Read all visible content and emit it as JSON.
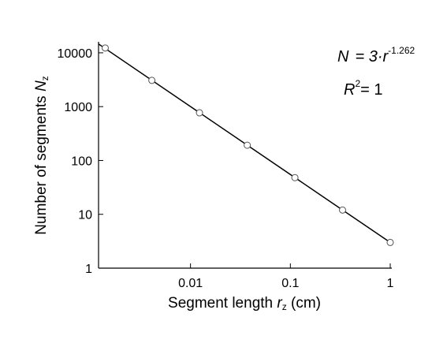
{
  "chart_data": {
    "type": "scatter",
    "xlabel": {
      "text": "Segment length ",
      "var": "r",
      "sub": "z",
      "unit": " (cm)"
    },
    "ylabel": {
      "text": "Number of segments ",
      "var": "N",
      "sub": "z"
    },
    "x": [
      1,
      0.333,
      0.111,
      0.037,
      0.0123,
      0.0041,
      0.0014
    ],
    "values": [
      3,
      12,
      48,
      192,
      768,
      3072,
      12288
    ],
    "color": "#ffffff",
    "xlim": [
      0.0012,
      1
    ],
    "ylim": [
      1,
      16000
    ],
    "xticks": [
      0.01,
      0.1,
      1
    ],
    "yticks": [
      1,
      10,
      100,
      1000,
      10000
    ],
    "xscale": "log",
    "yscale": "log",
    "fit": {
      "lhs": "N",
      "eq": "= ",
      "coefficient": 3,
      "dot": "·r",
      "exponent": -1.262,
      "r_label": "R",
      "r_sup": "2",
      "r_eq": "= ",
      "r_squared": 1
    }
  }
}
